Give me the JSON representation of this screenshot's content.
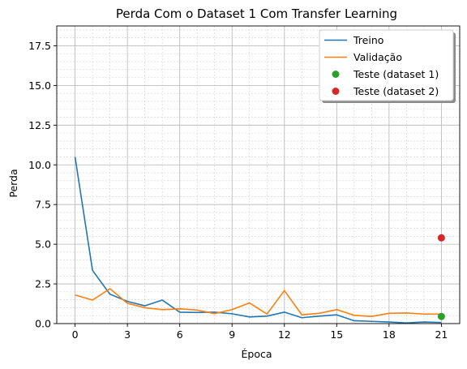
{
  "chart_data": {
    "type": "line",
    "title": "Perda Com o Dataset 1 Com Transfer Learning",
    "xlabel": "Época",
    "ylabel": "Perda",
    "xlim": [
      -1.05,
      22.05
    ],
    "ylim": [
      0,
      18.75
    ],
    "xticks": [
      0,
      3,
      6,
      9,
      12,
      15,
      18,
      21
    ],
    "yticks": [
      0.0,
      2.5,
      5.0,
      7.5,
      10.0,
      12.5,
      15.0,
      17.5
    ],
    "ytick_labels": [
      "0.0",
      "2.5",
      "5.0",
      "7.5",
      "10.0",
      "12.5",
      "15.0",
      "17.5"
    ],
    "grid": true,
    "minor_grid": true,
    "legend_position": "upper right",
    "series": [
      {
        "name": "Treino",
        "kind": "line",
        "color": "#1f77b4",
        "x": [
          0,
          1,
          2,
          3,
          4,
          5,
          6,
          7,
          8,
          9,
          10,
          11,
          12,
          13,
          14,
          15,
          16,
          17,
          18,
          19,
          20,
          21
        ],
        "values": [
          10.5,
          3.35,
          1.85,
          1.4,
          1.12,
          1.48,
          0.72,
          0.7,
          0.72,
          0.62,
          0.42,
          0.47,
          0.72,
          0.37,
          0.47,
          0.55,
          0.18,
          0.14,
          0.1,
          0.04,
          0.1,
          0.07
        ]
      },
      {
        "name": "Validação",
        "kind": "line",
        "color": "#ff7f0e",
        "x": [
          0,
          1,
          2,
          3,
          4,
          5,
          6,
          7,
          8,
          9,
          10,
          11,
          12,
          13,
          14,
          15,
          16,
          17,
          18,
          19,
          20,
          21
        ],
        "values": [
          1.8,
          1.48,
          2.2,
          1.28,
          1.0,
          0.88,
          0.93,
          0.85,
          0.63,
          0.88,
          1.3,
          0.6,
          2.08,
          0.55,
          0.65,
          0.88,
          0.52,
          0.45,
          0.65,
          0.67,
          0.6,
          0.6
        ]
      },
      {
        "name": "Teste (dataset 1)",
        "kind": "point",
        "color": "#2ca02c",
        "x": [
          21
        ],
        "values": [
          0.45
        ]
      },
      {
        "name": "Teste (dataset 2)",
        "kind": "point",
        "color": "#d62728",
        "x": [
          21
        ],
        "values": [
          5.4
        ]
      }
    ]
  }
}
